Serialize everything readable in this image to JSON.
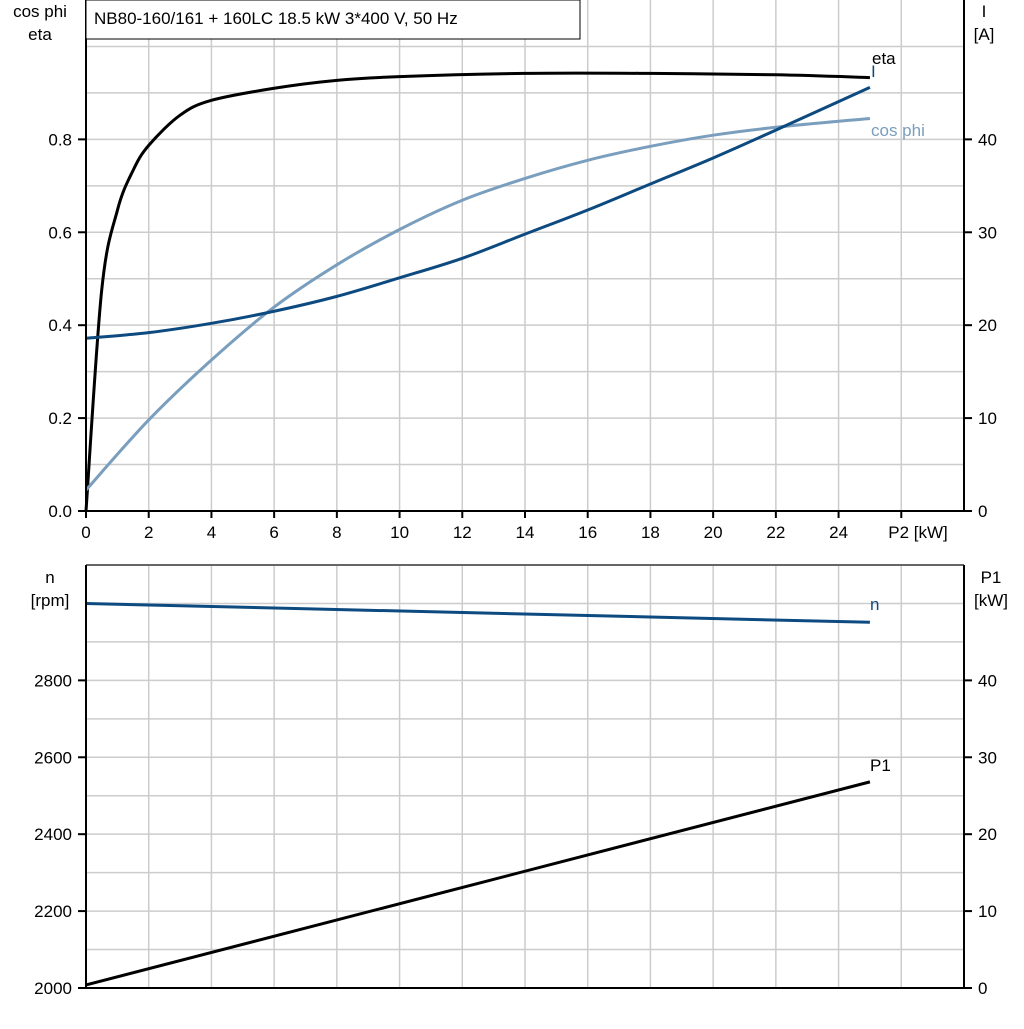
{
  "title": "NB80-160/161 + 160LC   18.5 kW   3*400 V, 50 Hz",
  "colors": {
    "eta": "#000000",
    "cos_phi": "#7a9ebd",
    "I": "#0d4a80",
    "n": "#0d4a80",
    "P1": "#000000",
    "grid": "#cccccc"
  },
  "chart_data": [
    {
      "type": "line",
      "xlabel": "P2 [kW]",
      "ylabel_left": [
        "cos phi",
        "eta"
      ],
      "ylabel_right": [
        "I",
        "[A]"
      ],
      "xlim": [
        0,
        28
      ],
      "ylim_left": [
        0,
        1.1
      ],
      "ylim_right": [
        0,
        55
      ],
      "x_ticks": [
        "0",
        "2",
        "4",
        "6",
        "8",
        "10",
        "12",
        "14",
        "16",
        "18",
        "20",
        "22",
        "24"
      ],
      "y_left_ticks": [
        "0.0",
        "0.2",
        "0.4",
        "0.6",
        "0.8"
      ],
      "y_right_ticks": [
        "0",
        "10",
        "20",
        "30",
        "40"
      ],
      "grid": true,
      "series": [
        {
          "name": "eta",
          "axis": "left",
          "x": [
            0,
            0.5,
            1,
            1.5,
            2,
            3,
            4,
            6,
            8,
            10,
            14,
            18,
            22,
            25
          ],
          "y": [
            0,
            0.475,
            0.647,
            0.733,
            0.787,
            0.852,
            0.884,
            0.91,
            0.927,
            0.935,
            0.942,
            0.942,
            0.939,
            0.933
          ]
        },
        {
          "name": "cos phi",
          "axis": "left",
          "x": [
            0,
            2,
            4,
            6,
            8,
            10,
            12,
            14,
            16,
            18,
            20,
            22,
            25
          ],
          "y": [
            0.045,
            0.196,
            0.325,
            0.439,
            0.53,
            0.606,
            0.669,
            0.716,
            0.755,
            0.785,
            0.809,
            0.826,
            0.845
          ]
        },
        {
          "name": "I",
          "axis": "right",
          "x": [
            0,
            2,
            4,
            6,
            8,
            10,
            12,
            14,
            16,
            18,
            20,
            22,
            25
          ],
          "y": [
            18.6,
            19.2,
            20.2,
            21.5,
            23.1,
            25.1,
            27.2,
            29.8,
            32.4,
            35.2,
            38.0,
            41.0,
            45.6
          ]
        }
      ]
    },
    {
      "type": "line",
      "ylabel_left": [
        "n",
        "[rpm]"
      ],
      "ylabel_right": [
        "P1",
        "[kW]"
      ],
      "xlim": [
        0,
        28
      ],
      "ylim_left": [
        2000,
        3100
      ],
      "ylim_right": [
        0,
        55
      ],
      "y_left_ticks": [
        "2000",
        "2200",
        "2400",
        "2600",
        "2800"
      ],
      "y_right_ticks": [
        "0",
        "10",
        "20",
        "30",
        "40"
      ],
      "grid": true,
      "series": [
        {
          "name": "n",
          "axis": "left",
          "x": [
            0,
            25
          ],
          "y": [
            3000,
            2951
          ]
        },
        {
          "name": "P1",
          "axis": "right",
          "x": [
            0,
            25
          ],
          "y": [
            0.4,
            26.8
          ]
        }
      ]
    }
  ]
}
